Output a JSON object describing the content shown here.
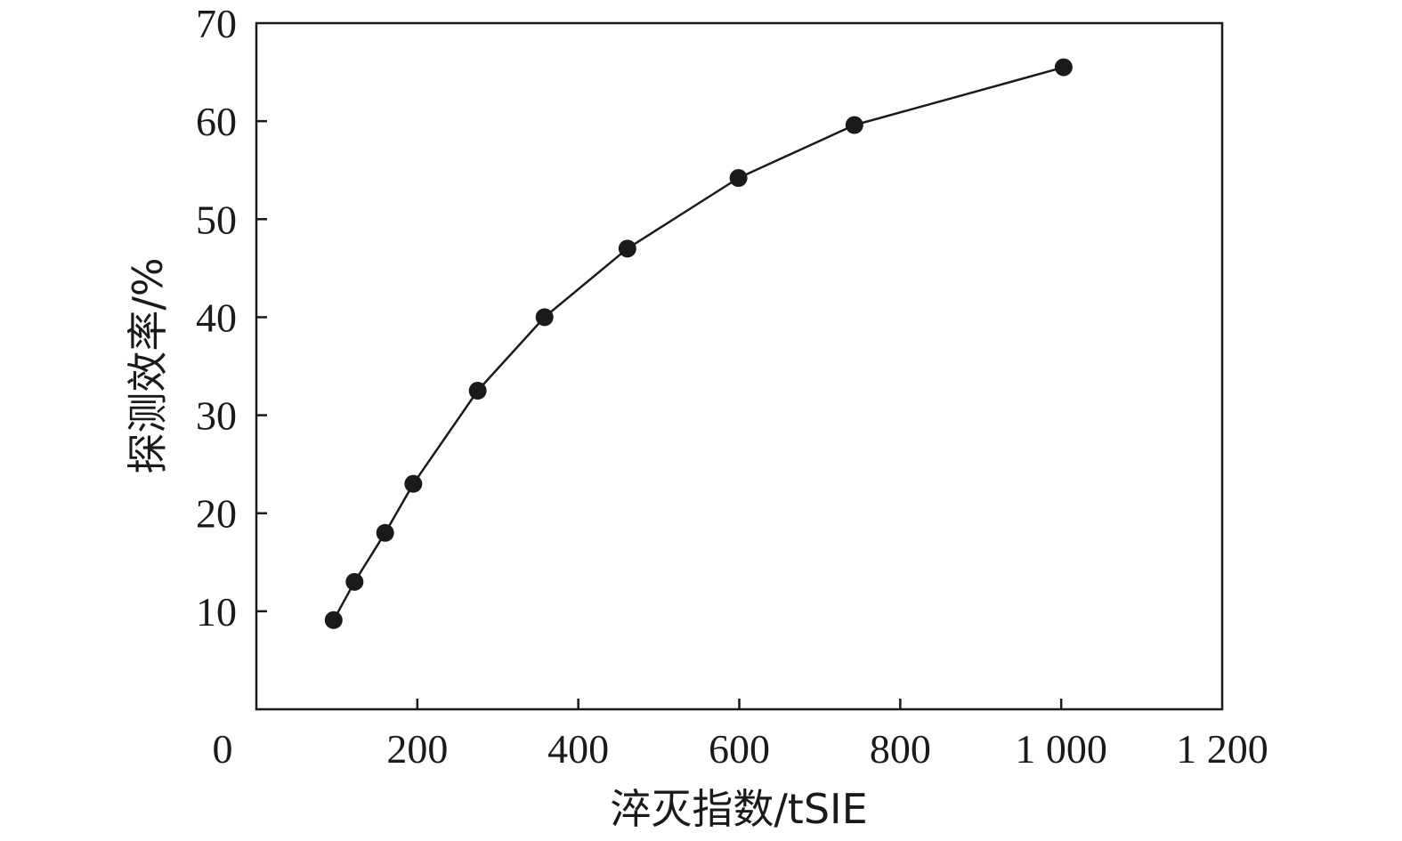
{
  "chart_data": {
    "type": "line",
    "title": "",
    "xlabel": "淬灭指数/tSIE",
    "ylabel": "探测效率/%",
    "xlim": [
      0,
      1200
    ],
    "ylim": [
      0,
      70
    ],
    "x_ticks": [
      {
        "value": 0,
        "label": "0"
      },
      {
        "value": 200,
        "label": "200"
      },
      {
        "value": 400,
        "label": "400"
      },
      {
        "value": 600,
        "label": "600"
      },
      {
        "value": 800,
        "label": "800"
      },
      {
        "value": 1000,
        "label": "1 000"
      },
      {
        "value": 1200,
        "label": "1 200"
      }
    ],
    "y_ticks": [
      {
        "value": 10,
        "label": "10"
      },
      {
        "value": 20,
        "label": "20"
      },
      {
        "value": 30,
        "label": "30"
      },
      {
        "value": 40,
        "label": "40"
      },
      {
        "value": 50,
        "label": "50"
      },
      {
        "value": 60,
        "label": "60"
      },
      {
        "value": 70,
        "label": "70"
      }
    ],
    "grid": false,
    "legend": "none",
    "series": [
      {
        "color": "#1a1a1a",
        "marker": "filled-circle",
        "x": [
          96,
          122,
          160,
          195,
          275,
          358,
          461,
          599,
          743,
          1003
        ],
        "y": [
          9.1,
          13.0,
          18.0,
          23.0,
          32.5,
          40.0,
          47.0,
          54.2,
          59.6,
          65.5
        ]
      }
    ]
  }
}
